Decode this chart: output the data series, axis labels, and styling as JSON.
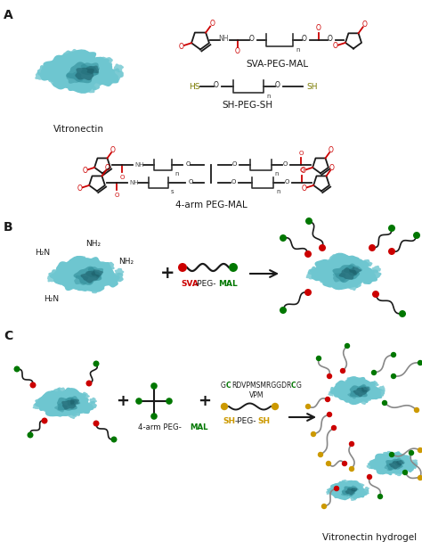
{
  "background_color": "#ffffff",
  "vitronectin_label": "Vitronectin",
  "sva_peg_mal_label": "SVA-PEG-MAL",
  "sh_peg_sh_label": "SH-PEG-SH",
  "four_arm_label": "4-arm PEG-MAL",
  "vitronectin_hydrogel_label": "Vitronectin hydrogel",
  "teal_light": "#6EC6D0",
  "teal_mid": "#4AABB8",
  "teal_dark": "#2E8B97",
  "teal_darkest": "#1a5a66",
  "red_color": "#CC0000",
  "green_color": "#007700",
  "yellow_color": "#CC9900",
  "olive_color": "#7a7a00",
  "black_color": "#1a1a1a",
  "gray_color": "#888888"
}
